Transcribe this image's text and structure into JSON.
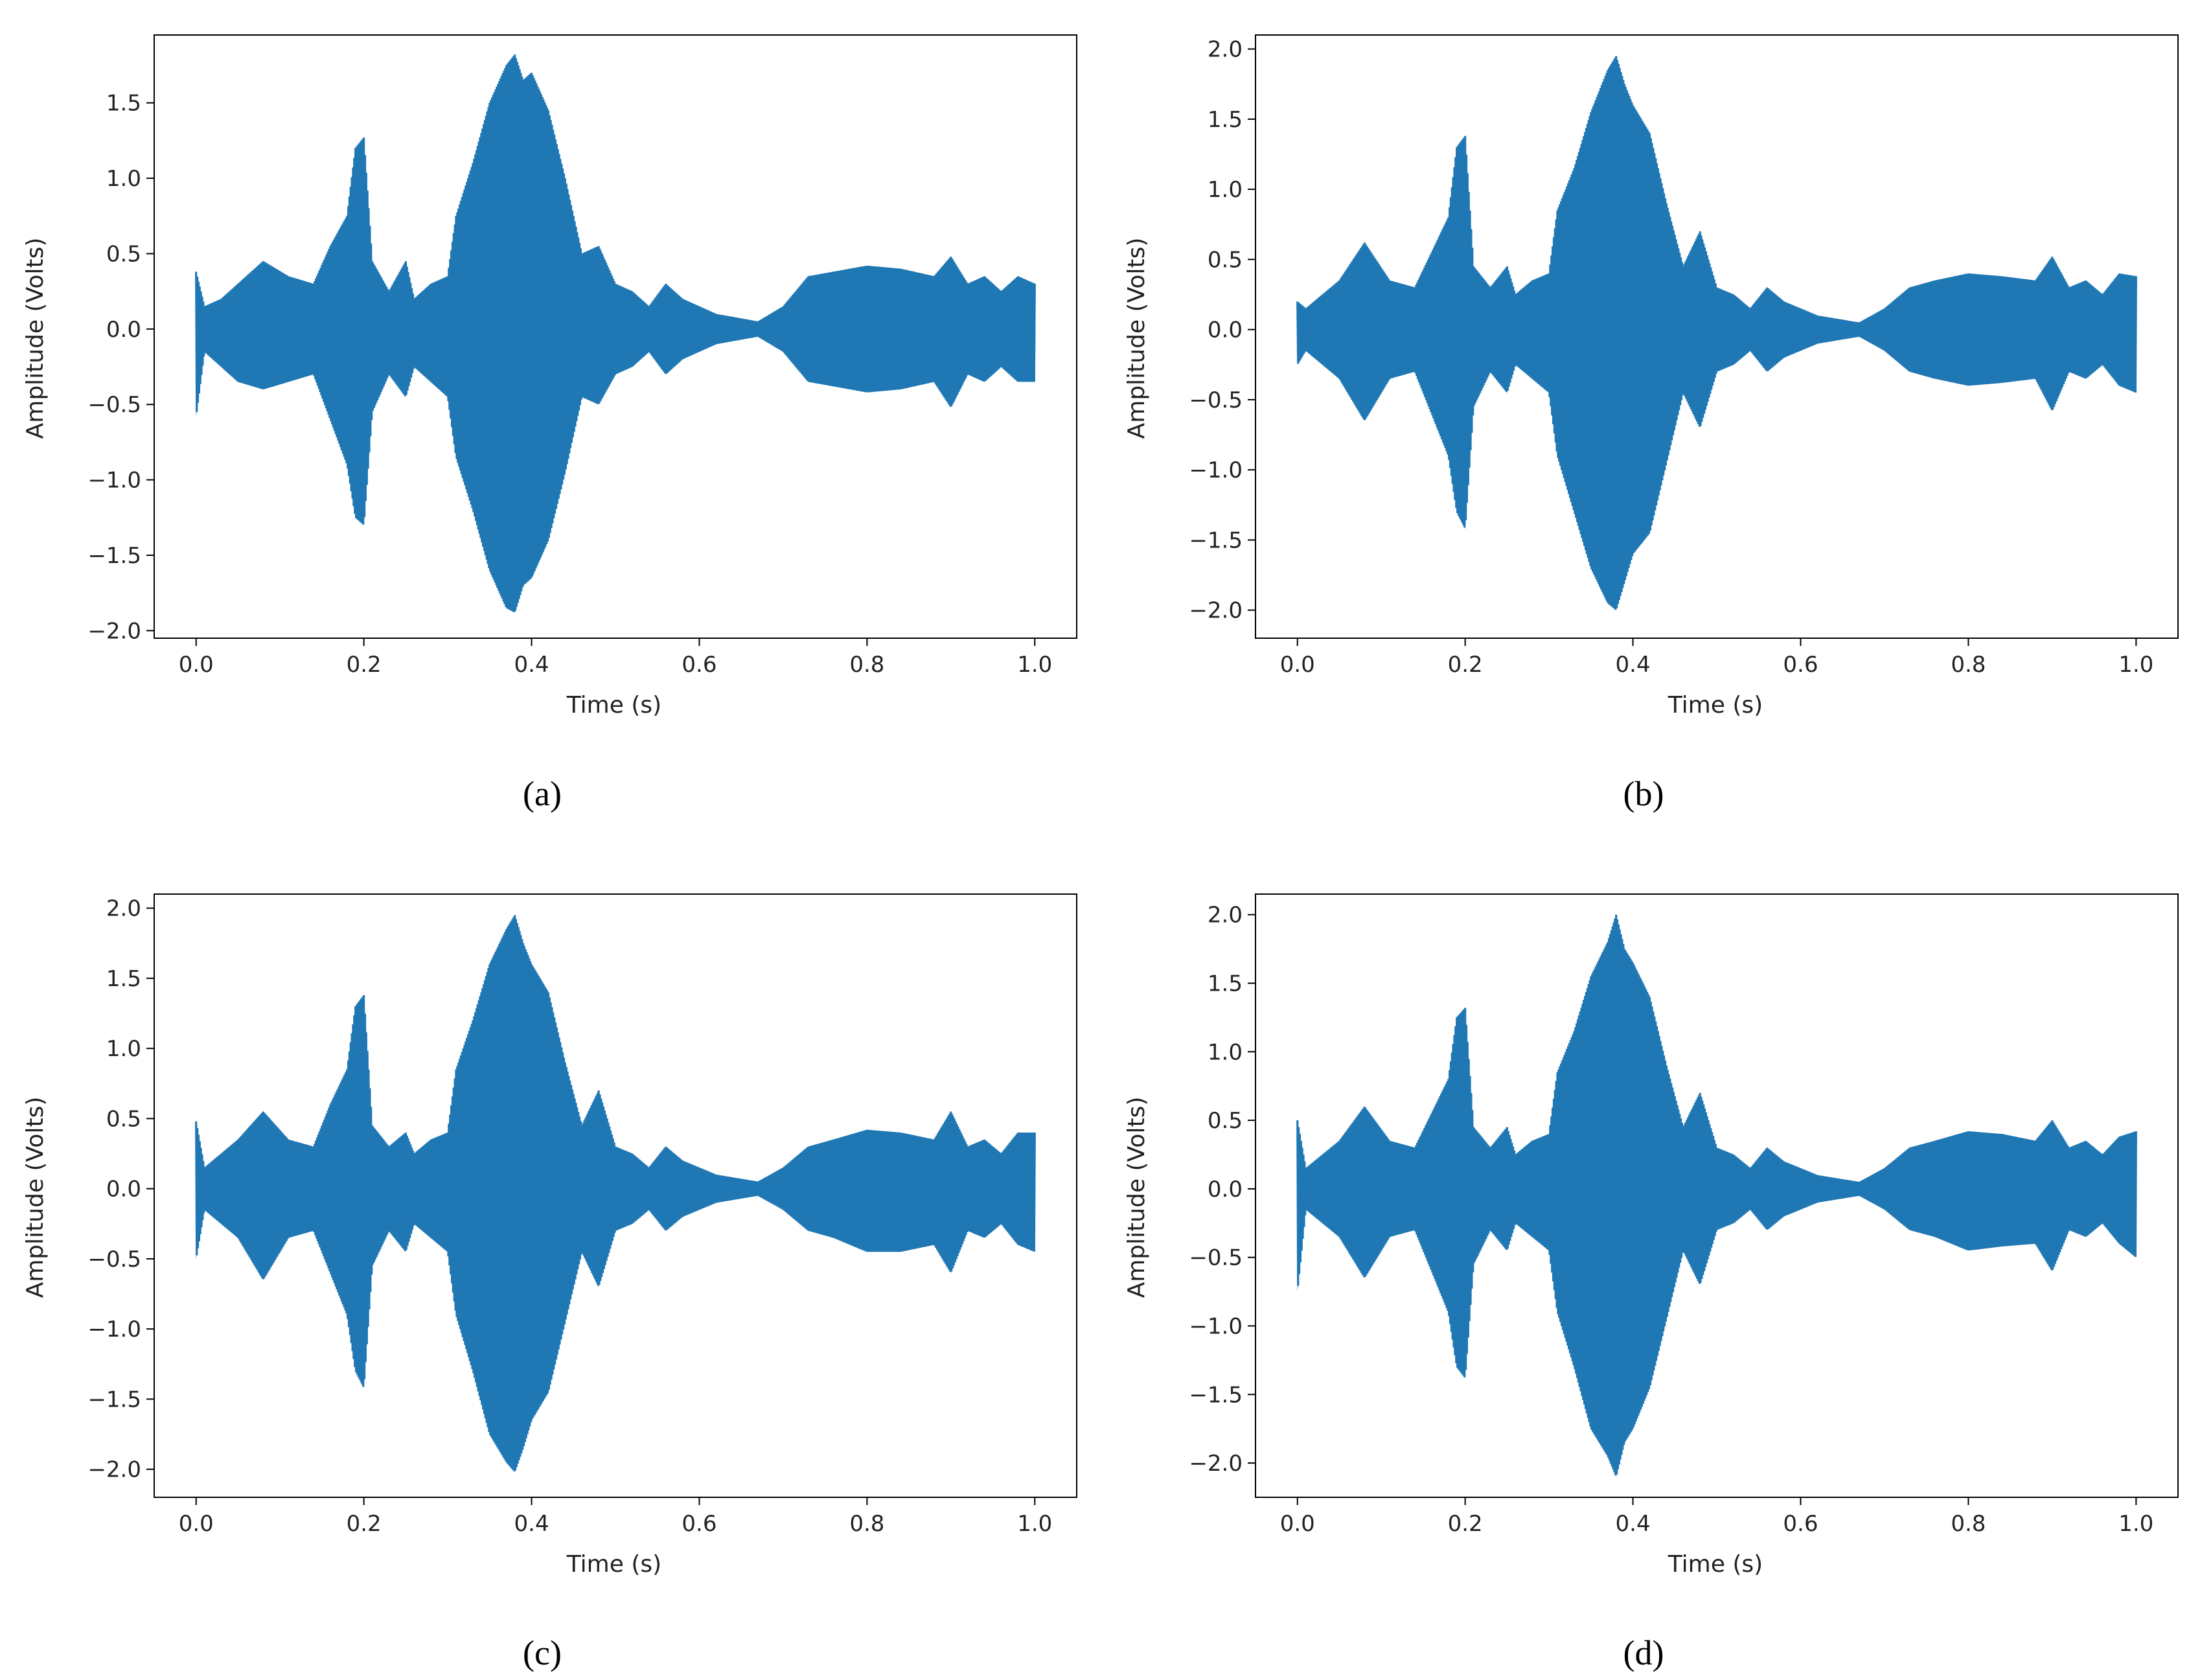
{
  "chart_data": [
    {
      "type": "line",
      "panel_label": "(a)",
      "xlabel": "Time (s)",
      "ylabel": "Amplitude (Volts)",
      "xlim": [
        -0.05,
        1.05
      ],
      "ylim": [
        -2.05,
        1.95
      ],
      "xticks": [
        "0.0",
        "0.2",
        "0.4",
        "0.6",
        "0.8",
        "1.0"
      ],
      "yticks": [
        "-2.0",
        "-1.5",
        "-1.0",
        "-0.5",
        "0.0",
        "0.5",
        "1.0",
        "1.5"
      ],
      "series": [
        {
          "color": "#1f77b4",
          "x": [
            0.0,
            0.01,
            0.03,
            0.05,
            0.08,
            0.11,
            0.14,
            0.16,
            0.18,
            0.19,
            0.2,
            0.21,
            0.23,
            0.25,
            0.26,
            0.28,
            0.3,
            0.31,
            0.33,
            0.35,
            0.37,
            0.38,
            0.39,
            0.4,
            0.42,
            0.44,
            0.46,
            0.48,
            0.5,
            0.52,
            0.54,
            0.56,
            0.58,
            0.6,
            0.62,
            0.64,
            0.67,
            0.7,
            0.73,
            0.76,
            0.8,
            0.84,
            0.88,
            0.9,
            0.92,
            0.94,
            0.96,
            0.98,
            1.0
          ],
          "upper": [
            0.38,
            0.15,
            0.2,
            0.3,
            0.45,
            0.35,
            0.3,
            0.55,
            0.75,
            1.2,
            1.27,
            0.45,
            0.25,
            0.45,
            0.2,
            0.3,
            0.35,
            0.75,
            1.1,
            1.5,
            1.75,
            1.82,
            1.65,
            1.7,
            1.45,
            1.0,
            0.5,
            0.55,
            0.3,
            0.25,
            0.15,
            0.3,
            0.2,
            0.15,
            0.1,
            0.08,
            0.05,
            0.15,
            0.35,
            0.38,
            0.42,
            0.4,
            0.35,
            0.48,
            0.3,
            0.35,
            0.25,
            0.35,
            0.3
          ],
          "lower": [
            -0.58,
            -0.15,
            -0.25,
            -0.35,
            -0.4,
            -0.35,
            -0.3,
            -0.6,
            -0.9,
            -1.25,
            -1.3,
            -0.55,
            -0.3,
            -0.45,
            -0.25,
            -0.35,
            -0.45,
            -0.85,
            -1.2,
            -1.6,
            -1.85,
            -1.88,
            -1.7,
            -1.65,
            -1.4,
            -0.95,
            -0.45,
            -0.5,
            -0.3,
            -0.25,
            -0.15,
            -0.3,
            -0.2,
            -0.15,
            -0.1,
            -0.08,
            -0.05,
            -0.15,
            -0.35,
            -0.38,
            -0.42,
            -0.4,
            -0.35,
            -0.52,
            -0.3,
            -0.35,
            -0.25,
            -0.35,
            -0.35
          ]
        }
      ]
    },
    {
      "type": "line",
      "panel_label": "(b)",
      "xlabel": "Time (s)",
      "ylabel": "Amplitude (Volts)",
      "xlim": [
        -0.05,
        1.05
      ],
      "ylim": [
        -2.2,
        2.1
      ],
      "xticks": [
        "0.0",
        "0.2",
        "0.4",
        "0.6",
        "0.8",
        "1.0"
      ],
      "yticks": [
        "-2.0",
        "-1.5",
        "-1.0",
        "-0.5",
        "0.0",
        "0.5",
        "1.0",
        "1.5",
        "2.0"
      ],
      "series": [
        {
          "color": "#1f77b4",
          "x": [
            0.0,
            0.01,
            0.03,
            0.05,
            0.08,
            0.11,
            0.14,
            0.16,
            0.18,
            0.19,
            0.2,
            0.21,
            0.23,
            0.25,
            0.26,
            0.28,
            0.3,
            0.31,
            0.33,
            0.35,
            0.37,
            0.38,
            0.39,
            0.4,
            0.42,
            0.44,
            0.46,
            0.48,
            0.5,
            0.52,
            0.54,
            0.56,
            0.58,
            0.6,
            0.62,
            0.64,
            0.67,
            0.7,
            0.73,
            0.76,
            0.8,
            0.84,
            0.88,
            0.9,
            0.92,
            0.94,
            0.96,
            0.98,
            1.0
          ],
          "upper": [
            0.2,
            0.15,
            0.25,
            0.35,
            0.62,
            0.35,
            0.3,
            0.55,
            0.8,
            1.3,
            1.38,
            0.45,
            0.3,
            0.45,
            0.25,
            0.35,
            0.4,
            0.85,
            1.15,
            1.55,
            1.85,
            1.95,
            1.75,
            1.6,
            1.4,
            0.9,
            0.45,
            0.7,
            0.3,
            0.25,
            0.15,
            0.3,
            0.2,
            0.15,
            0.1,
            0.08,
            0.05,
            0.15,
            0.3,
            0.35,
            0.4,
            0.38,
            0.35,
            0.52,
            0.3,
            0.35,
            0.25,
            0.4,
            0.38
          ],
          "lower": [
            -0.25,
            -0.15,
            -0.25,
            -0.35,
            -0.65,
            -0.35,
            -0.3,
            -0.6,
            -0.9,
            -1.3,
            -1.42,
            -0.55,
            -0.3,
            -0.45,
            -0.25,
            -0.35,
            -0.45,
            -0.9,
            -1.3,
            -1.7,
            -1.95,
            -2.0,
            -1.8,
            -1.6,
            -1.45,
            -0.95,
            -0.45,
            -0.7,
            -0.3,
            -0.25,
            -0.15,
            -0.3,
            -0.2,
            -0.15,
            -0.1,
            -0.08,
            -0.05,
            -0.15,
            -0.3,
            -0.35,
            -0.4,
            -0.38,
            -0.35,
            -0.58,
            -0.3,
            -0.35,
            -0.25,
            -0.4,
            -0.45
          ]
        }
      ]
    },
    {
      "type": "line",
      "panel_label": "(c)",
      "xlabel": "Time (s)",
      "ylabel": "Amplitude (Volts)",
      "xlim": [
        -0.05,
        1.05
      ],
      "ylim": [
        -2.2,
        2.1
      ],
      "xticks": [
        "0.0",
        "0.2",
        "0.4",
        "0.6",
        "0.8",
        "1.0"
      ],
      "yticks": [
        "-2.0",
        "-1.5",
        "-1.0",
        "-0.5",
        "0.0",
        "0.5",
        "1.0",
        "1.5",
        "2.0"
      ],
      "series": [
        {
          "color": "#1f77b4",
          "x": [
            0.0,
            0.01,
            0.03,
            0.05,
            0.08,
            0.11,
            0.14,
            0.16,
            0.18,
            0.19,
            0.2,
            0.21,
            0.23,
            0.25,
            0.26,
            0.28,
            0.3,
            0.31,
            0.33,
            0.35,
            0.37,
            0.38,
            0.39,
            0.4,
            0.42,
            0.44,
            0.46,
            0.48,
            0.5,
            0.52,
            0.54,
            0.56,
            0.58,
            0.6,
            0.62,
            0.64,
            0.67,
            0.7,
            0.73,
            0.76,
            0.8,
            0.84,
            0.88,
            0.9,
            0.92,
            0.94,
            0.96,
            0.98,
            1.0
          ],
          "upper": [
            0.48,
            0.15,
            0.25,
            0.35,
            0.55,
            0.35,
            0.3,
            0.6,
            0.85,
            1.3,
            1.38,
            0.45,
            0.3,
            0.4,
            0.25,
            0.35,
            0.4,
            0.85,
            1.2,
            1.6,
            1.85,
            1.95,
            1.75,
            1.6,
            1.4,
            0.9,
            0.45,
            0.7,
            0.3,
            0.25,
            0.15,
            0.3,
            0.2,
            0.15,
            0.1,
            0.08,
            0.05,
            0.15,
            0.3,
            0.35,
            0.42,
            0.4,
            0.35,
            0.55,
            0.3,
            0.35,
            0.25,
            0.4,
            0.4
          ],
          "lower": [
            -0.5,
            -0.15,
            -0.25,
            -0.35,
            -0.65,
            -0.35,
            -0.3,
            -0.6,
            -0.9,
            -1.3,
            -1.42,
            -0.55,
            -0.3,
            -0.45,
            -0.25,
            -0.35,
            -0.45,
            -0.9,
            -1.3,
            -1.75,
            -1.95,
            -2.02,
            -1.85,
            -1.65,
            -1.45,
            -0.95,
            -0.45,
            -0.7,
            -0.3,
            -0.25,
            -0.15,
            -0.3,
            -0.2,
            -0.15,
            -0.1,
            -0.08,
            -0.05,
            -0.15,
            -0.3,
            -0.35,
            -0.45,
            -0.45,
            -0.4,
            -0.6,
            -0.3,
            -0.35,
            -0.25,
            -0.4,
            -0.45
          ]
        }
      ]
    },
    {
      "type": "line",
      "panel_label": "(d)",
      "xlabel": "Time (s)",
      "ylabel": "Amplitude (Volts)",
      "xlim": [
        -0.05,
        1.05
      ],
      "ylim": [
        -2.25,
        2.15
      ],
      "xticks": [
        "0.0",
        "0.2",
        "0.4",
        "0.6",
        "0.8",
        "1.0"
      ],
      "yticks": [
        "-2.0",
        "-1.5",
        "-1.0",
        "-0.5",
        "0.0",
        "0.5",
        "1.0",
        "1.5",
        "2.0"
      ],
      "series": [
        {
          "color": "#1f77b4",
          "x": [
            0.0,
            0.01,
            0.03,
            0.05,
            0.08,
            0.11,
            0.14,
            0.16,
            0.18,
            0.19,
            0.2,
            0.21,
            0.23,
            0.25,
            0.26,
            0.28,
            0.3,
            0.31,
            0.33,
            0.35,
            0.37,
            0.38,
            0.39,
            0.4,
            0.42,
            0.44,
            0.46,
            0.48,
            0.5,
            0.52,
            0.54,
            0.56,
            0.58,
            0.6,
            0.62,
            0.64,
            0.67,
            0.7,
            0.73,
            0.76,
            0.8,
            0.84,
            0.88,
            0.9,
            0.92,
            0.94,
            0.96,
            0.98,
            1.0
          ],
          "upper": [
            0.5,
            0.15,
            0.25,
            0.35,
            0.6,
            0.35,
            0.3,
            0.55,
            0.8,
            1.25,
            1.32,
            0.45,
            0.3,
            0.45,
            0.25,
            0.35,
            0.4,
            0.85,
            1.15,
            1.55,
            1.8,
            2.0,
            1.75,
            1.65,
            1.4,
            0.9,
            0.45,
            0.7,
            0.3,
            0.25,
            0.15,
            0.3,
            0.2,
            0.15,
            0.1,
            0.08,
            0.05,
            0.15,
            0.3,
            0.35,
            0.42,
            0.4,
            0.35,
            0.5,
            0.3,
            0.35,
            0.25,
            0.38,
            0.42
          ],
          "lower": [
            -0.75,
            -0.15,
            -0.25,
            -0.35,
            -0.65,
            -0.35,
            -0.3,
            -0.6,
            -0.9,
            -1.3,
            -1.38,
            -0.55,
            -0.3,
            -0.45,
            -0.25,
            -0.35,
            -0.45,
            -0.9,
            -1.3,
            -1.75,
            -1.95,
            -2.1,
            -1.85,
            -1.75,
            -1.45,
            -0.95,
            -0.45,
            -0.7,
            -0.3,
            -0.25,
            -0.15,
            -0.3,
            -0.2,
            -0.15,
            -0.1,
            -0.08,
            -0.05,
            -0.15,
            -0.3,
            -0.35,
            -0.45,
            -0.42,
            -0.4,
            -0.6,
            -0.3,
            -0.35,
            -0.25,
            -0.4,
            -0.5
          ]
        }
      ]
    }
  ]
}
